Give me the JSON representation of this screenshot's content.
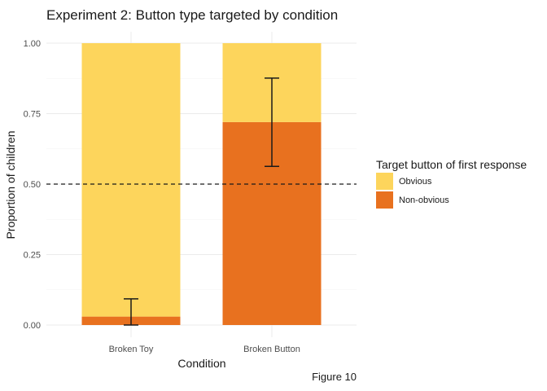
{
  "chart_data": {
    "type": "bar",
    "stacked": true,
    "title": "Experiment 2: Button type targeted by condition",
    "xlabel": "Condition",
    "ylabel": "Proportion of children",
    "caption": "Figure 10",
    "categories": [
      "Broken Toy",
      "Broken Button"
    ],
    "ylim": [
      0,
      1
    ],
    "yticks": [
      "0.00",
      "0.25",
      "0.50",
      "0.75",
      "1.00"
    ],
    "ytick_values": [
      0,
      0.25,
      0.5,
      0.75,
      1.0
    ],
    "grid": true,
    "reference_line": {
      "y": 0.5,
      "style": "dashed"
    },
    "series": [
      {
        "name": "Non-obvious",
        "color": "#E8711F",
        "values": [
          0.03,
          0.72
        ]
      },
      {
        "name": "Obvious",
        "color": "#FDD55C",
        "values": [
          0.97,
          0.28
        ]
      }
    ],
    "error_bars": [
      {
        "category": "Broken Toy",
        "low": 0.0,
        "high": 0.093
      },
      {
        "category": "Broken Button",
        "low": 0.563,
        "high": 0.876
      }
    ],
    "legend": {
      "title": "Target button of first response",
      "placement": "right",
      "entries": [
        {
          "label": "Obvious",
          "color": "#FDD55C"
        },
        {
          "label": "Non-obvious",
          "color": "#E8711F"
        }
      ]
    }
  }
}
